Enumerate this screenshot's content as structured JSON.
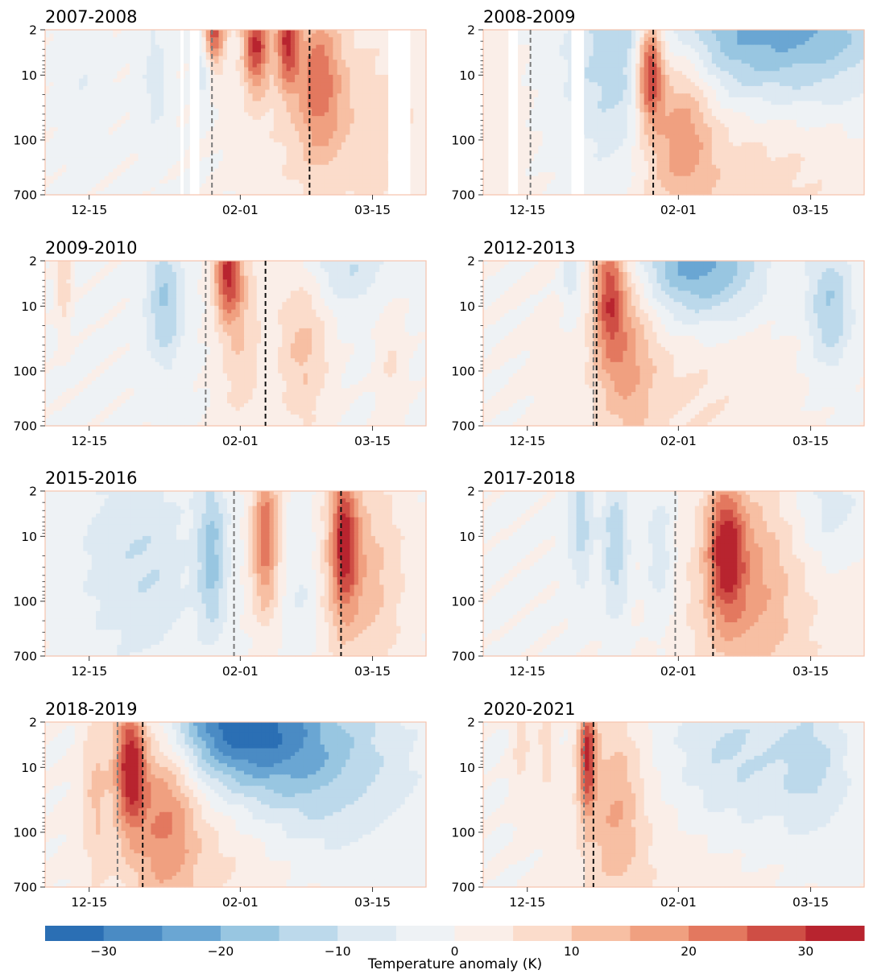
{
  "chart_data": {
    "type": "heatmap",
    "title": "",
    "ylabel": "",
    "xlabel": "",
    "y_scale": "log",
    "y_ticks": [
      "2",
      "10",
      "100",
      "700"
    ],
    "x_ticks": [
      "12-15",
      "02-01",
      "03-15"
    ],
    "x_tick_days": [
      14,
      62,
      104
    ],
    "x_range_days": [
      0,
      121
    ],
    "grid": false,
    "colorbar": {
      "label": "Temperature anomaly (K)",
      "ticks": [
        "−30",
        "−20",
        "−10",
        "0",
        "10",
        "20",
        "30"
      ],
      "tick_values": [
        -30,
        -20,
        -10,
        0,
        10,
        20,
        30
      ],
      "levels": [
        -35,
        -30,
        -25,
        -20,
        -15,
        -10,
        -5,
        0,
        5,
        10,
        15,
        20,
        25,
        30,
        35
      ],
      "colors": [
        "#2b6fb4",
        "#4a8bc4",
        "#6aa6d3",
        "#98c6e1",
        "#bcd9eb",
        "#dde9f2",
        "#eef2f5",
        "#faeee8",
        "#fbdccb",
        "#f7bfa3",
        "#f0a080",
        "#e3785f",
        "#cf4e45",
        "#b8242f"
      ]
    },
    "panels": [
      {
        "title": "2007-2008",
        "grey_line_day": 53,
        "black_line_day": 84,
        "gaps": [
          [
            43,
            44
          ],
          [
            46,
            49
          ],
          [
            109,
            116
          ]
        ],
        "anomalies": [
          {
            "day": 53.5,
            "height": 2,
            "amp": 28,
            "dx": 2.5,
            "dy": 0.9
          },
          {
            "day": 67,
            "height": 3,
            "amp": 30,
            "dx": 3,
            "dy": 1.2
          },
          {
            "day": 77,
            "height": 3,
            "amp": 28,
            "dx": 2.5,
            "dy": 1.1
          },
          {
            "day": 87,
            "height": 10,
            "amp": 18,
            "dx": 5,
            "dy": 1.8
          },
          {
            "day": 95,
            "height": 60,
            "amp": 9,
            "dx": 20,
            "dy": 2.6
          },
          {
            "day": 35,
            "height": 10,
            "amp": -7,
            "dx": 3,
            "dy": 1.5
          },
          {
            "day": 12,
            "height": 10,
            "amp": -4,
            "dx": 4,
            "dy": 1.5
          },
          {
            "day": 50,
            "height": 6,
            "amp": -10,
            "dx": 2,
            "dy": 1.0
          }
        ]
      },
      {
        "title": "2008-2009",
        "grey_line_day": 15,
        "black_line_day": 54,
        "gaps": [
          [
            8,
            11
          ],
          [
            28,
            32
          ]
        ],
        "anomalies": [
          {
            "day": 53,
            "height": 8,
            "amp": 34,
            "dx": 3,
            "dy": 1.3
          },
          {
            "day": 63,
            "height": 40,
            "amp": 16,
            "dx": 7,
            "dy": 2.3
          },
          {
            "day": 82,
            "height": 150,
            "amp": 9,
            "dx": 28,
            "dy": 3.0
          },
          {
            "day": 90,
            "height": 2,
            "amp": -25,
            "dx": 28,
            "dy": 2.0
          },
          {
            "day": 40,
            "height": 15,
            "amp": -10,
            "dx": 10,
            "dy": 2.5
          },
          {
            "day": 5,
            "height": 60,
            "amp": 4,
            "dx": 6,
            "dy": 3.0
          }
        ]
      },
      {
        "title": "2009-2010",
        "grey_line_day": 51,
        "black_line_day": 70,
        "gaps": [],
        "anomalies": [
          {
            "day": 58,
            "height": 3,
            "amp": 28,
            "dx": 3,
            "dy": 1.1
          },
          {
            "day": 62,
            "height": 25,
            "amp": 10,
            "dx": 5,
            "dy": 2.5
          },
          {
            "day": 82,
            "height": 40,
            "amp": 12,
            "dx": 6,
            "dy": 2.2
          },
          {
            "day": 38,
            "height": 8,
            "amp": -15,
            "dx": 4,
            "dy": 1.6
          },
          {
            "day": 95,
            "height": 2,
            "amp": -10,
            "dx": 10,
            "dy": 1.2
          },
          {
            "day": 6,
            "height": 3,
            "amp": 10,
            "dx": 1.5,
            "dy": 1.4
          },
          {
            "day": 110,
            "height": 100,
            "amp": 6,
            "dx": 3,
            "dy": 2.0
          }
        ]
      },
      {
        "title": "2012-2013",
        "grey_line_day": 35,
        "black_line_day": 36,
        "gaps": [],
        "anomalies": [
          {
            "day": 40,
            "height": 6,
            "amp": 24,
            "dx": 3.5,
            "dy": 1.6
          },
          {
            "day": 46,
            "height": 40,
            "amp": 12,
            "dx": 6,
            "dy": 2.4
          },
          {
            "day": 60,
            "height": 100,
            "amp": 7,
            "dx": 25,
            "dy": 2.8
          },
          {
            "day": 68,
            "height": 2,
            "amp": -25,
            "dx": 14,
            "dy": 1.6
          },
          {
            "day": 110,
            "height": 10,
            "amp": -15,
            "dx": 5,
            "dy": 1.5
          },
          {
            "day": 28,
            "height": 3,
            "amp": -9,
            "dx": 2,
            "dy": 1.2
          }
        ]
      },
      {
        "title": "2015-2016",
        "grey_line_day": 60,
        "black_line_day": 94,
        "gaps": [],
        "anomalies": [
          {
            "day": 70,
            "height": 10,
            "amp": 24,
            "dx": 3,
            "dy": 1.9
          },
          {
            "day": 95,
            "height": 10,
            "amp": 25,
            "dx": 3,
            "dy": 1.7
          },
          {
            "day": 100,
            "height": 40,
            "amp": 14,
            "dx": 10,
            "dy": 2.5
          },
          {
            "day": 53,
            "height": 20,
            "amp": -16,
            "dx": 3.5,
            "dy": 2.0
          },
          {
            "day": 35,
            "height": 30,
            "amp": -8,
            "dx": 8,
            "dy": 2.5
          },
          {
            "day": 20,
            "height": 20,
            "amp": -6,
            "dx": 8,
            "dy": 2.5
          },
          {
            "day": 82,
            "height": 60,
            "amp": -7,
            "dx": 4,
            "dy": 2.0
          }
        ]
      },
      {
        "title": "2017-2018",
        "grey_line_day": 61,
        "black_line_day": 73,
        "gaps": [],
        "anomalies": [
          {
            "day": 77,
            "height": 15,
            "amp": 25,
            "dx": 4,
            "dy": 1.6
          },
          {
            "day": 84,
            "height": 40,
            "amp": 12,
            "dx": 10,
            "dy": 2.5
          },
          {
            "day": 90,
            "height": 150,
            "amp": 6,
            "dx": 25,
            "dy": 2.8
          },
          {
            "day": 42,
            "height": 15,
            "amp": -14,
            "dx": 3,
            "dy": 1.8
          },
          {
            "day": 31,
            "height": 6,
            "amp": -12,
            "dx": 3,
            "dy": 1.5
          },
          {
            "day": 56,
            "height": 20,
            "amp": -10,
            "dx": 3,
            "dy": 1.8
          },
          {
            "day": 110,
            "height": 4,
            "amp": -8,
            "dx": 8,
            "dy": 1.5
          }
        ]
      },
      {
        "title": "2018-2019",
        "grey_line_day": 23,
        "black_line_day": 31,
        "gaps": [],
        "anomalies": [
          {
            "day": 27,
            "height": 8,
            "amp": 32,
            "dx": 3.5,
            "dy": 1.6
          },
          {
            "day": 38,
            "height": 40,
            "amp": 16,
            "dx": 7,
            "dy": 2.4
          },
          {
            "day": 48,
            "height": 150,
            "amp": 8,
            "dx": 22,
            "dy": 2.8
          },
          {
            "day": 60,
            "height": 2,
            "amp": -30,
            "dx": 16,
            "dy": 1.5
          },
          {
            "day": 85,
            "height": 8,
            "amp": -16,
            "dx": 20,
            "dy": 2.0
          },
          {
            "day": 16,
            "height": 15,
            "amp": 10,
            "dx": 3,
            "dy": 2.2
          }
        ]
      },
      {
        "title": "2020-2021",
        "grey_line_day": 32,
        "black_line_day": 35,
        "gaps": [],
        "anomalies": [
          {
            "day": 33,
            "height": 6,
            "amp": 28,
            "dx": 2,
            "dy": 1.5
          },
          {
            "day": 42,
            "height": 40,
            "amp": 13,
            "dx": 6,
            "dy": 2.3
          },
          {
            "day": 60,
            "height": 200,
            "amp": 5,
            "dx": 25,
            "dy": 3.0
          },
          {
            "day": 78,
            "height": 8,
            "amp": -12,
            "dx": 15,
            "dy": 2.0
          },
          {
            "day": 105,
            "height": 10,
            "amp": -10,
            "dx": 8,
            "dy": 1.8
          },
          {
            "day": 12,
            "height": 4,
            "amp": 8,
            "dx": 2,
            "dy": 1.5
          },
          {
            "day": 20,
            "height": 4,
            "amp": 7,
            "dx": 2,
            "dy": 1.4
          }
        ]
      }
    ]
  }
}
